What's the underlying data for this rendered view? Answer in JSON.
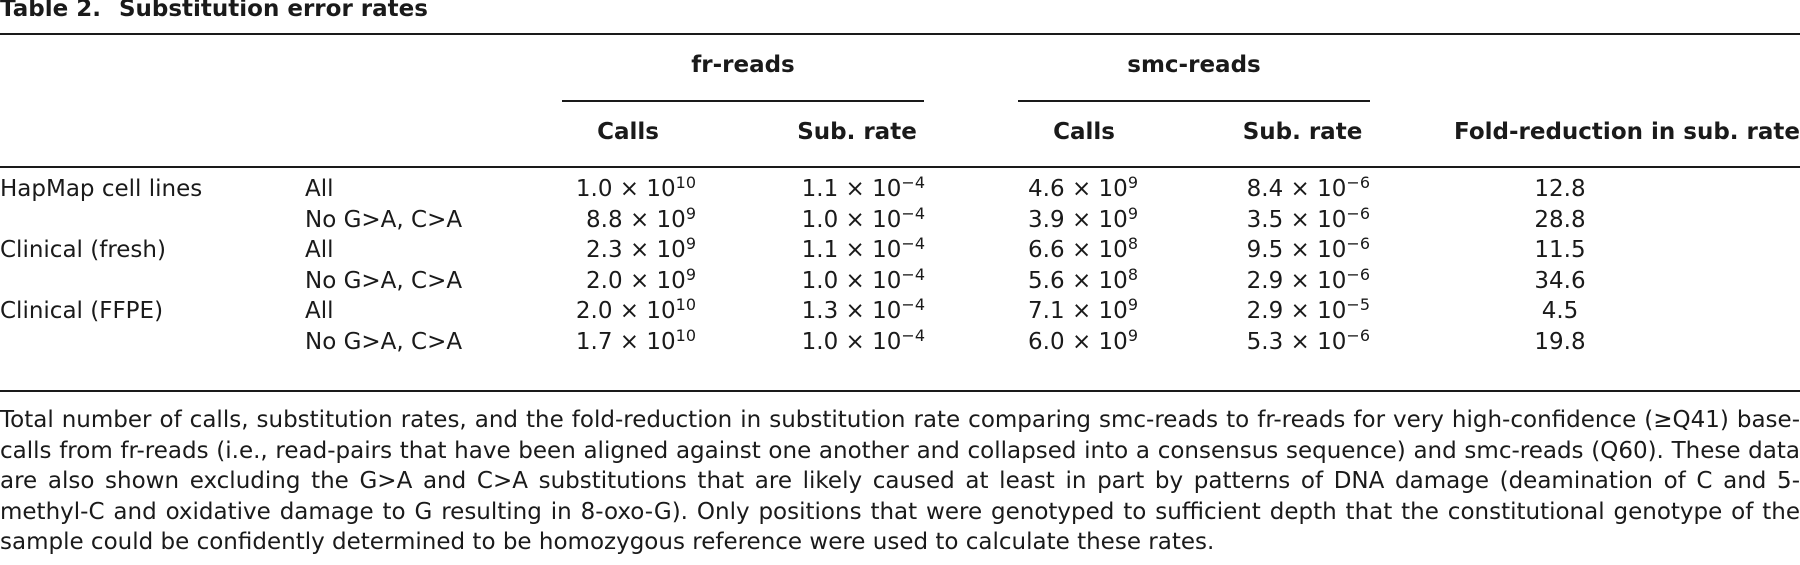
{
  "table": {
    "label": "Table 2.",
    "title": "Substitution error rates",
    "groups": [
      {
        "label": "fr-reads"
      },
      {
        "label": "smc-reads"
      }
    ],
    "columns": {
      "fr_calls": "Calls",
      "fr_rate": "Sub. rate",
      "smc_calls": "Calls",
      "smc_rate": "Sub. rate",
      "fold": "Fold-reduction in sub. rate"
    },
    "times": "×",
    "rows": [
      {
        "sample": "HapMap cell lines",
        "subset": "All",
        "fr_calls": {
          "m": "1.0",
          "e": "10"
        },
        "fr_rate": {
          "m": "1.1",
          "e": "−4"
        },
        "smc_calls": {
          "m": "4.6",
          "e": "9"
        },
        "smc_rate": {
          "m": "8.4",
          "e": "−6"
        },
        "fold": "12.8"
      },
      {
        "sample": "",
        "subset": "No G>A, C>A",
        "fr_calls": {
          "m": "8.8",
          "e": "9"
        },
        "fr_rate": {
          "m": "1.0",
          "e": "−4"
        },
        "smc_calls": {
          "m": "3.9",
          "e": "9"
        },
        "smc_rate": {
          "m": "3.5",
          "e": "−6"
        },
        "fold": "28.8"
      },
      {
        "sample": "Clinical (fresh)",
        "subset": "All",
        "fr_calls": {
          "m": "2.3",
          "e": "9"
        },
        "fr_rate": {
          "m": "1.1",
          "e": "−4"
        },
        "smc_calls": {
          "m": "6.6",
          "e": "8"
        },
        "smc_rate": {
          "m": "9.5",
          "e": "−6"
        },
        "fold": "11.5"
      },
      {
        "sample": "",
        "subset": "No G>A, C>A",
        "fr_calls": {
          "m": "2.0",
          "e": "9"
        },
        "fr_rate": {
          "m": "1.0",
          "e": "−4"
        },
        "smc_calls": {
          "m": "5.6",
          "e": "8"
        },
        "smc_rate": {
          "m": "2.9",
          "e": "−6"
        },
        "fold": "34.6"
      },
      {
        "sample": "Clinical (FFPE)",
        "subset": "All",
        "fr_calls": {
          "m": "2.0",
          "e": "10"
        },
        "fr_rate": {
          "m": "1.3",
          "e": "−4"
        },
        "smc_calls": {
          "m": "7.1",
          "e": "9"
        },
        "smc_rate": {
          "m": "2.9",
          "e": "−5"
        },
        "fold": "4.5"
      },
      {
        "sample": "",
        "subset": "No G>A, C>A",
        "fr_calls": {
          "m": "1.7",
          "e": "10"
        },
        "fr_rate": {
          "m": "1.0",
          "e": "−4"
        },
        "smc_calls": {
          "m": "6.0",
          "e": "9"
        },
        "smc_rate": {
          "m": "5.3",
          "e": "−6"
        },
        "fold": "19.8"
      }
    ],
    "footnote": "Total number of calls, substitution rates, and the fold-reduction in substitution rate comparing smc-reads to fr-reads for very high-confidence (≥Q41) base-calls from fr-reads (i.e., read-pairs that have been aligned against one another and collapsed into a consensus sequence) and smc-reads (Q60). These data are also shown excluding the G>A and C>A substitutions that are likely caused at least in part by patterns of DNA damage (deamination of C and 5-methyl-C and oxidative damage to G resulting in 8-oxo-G). Only positions that were genotyped to sufficient depth that the constitutional genotype of the sample could be confidently determined to be homozygous reference were used to calculate these rates."
  }
}
